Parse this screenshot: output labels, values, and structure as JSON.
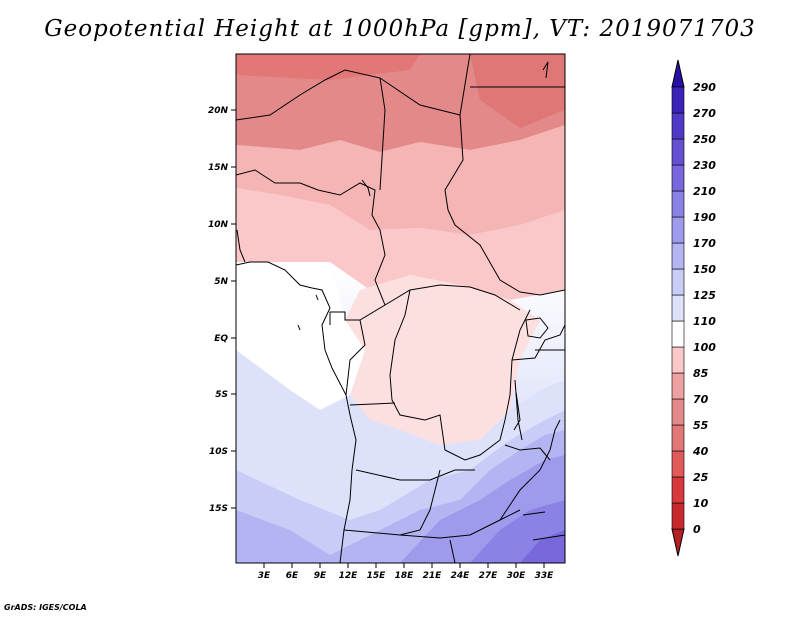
{
  "title": "Geopotential Height at 1000hPa [gpm], VT: 2019071703",
  "credit": "GrADS: IGES/COLA",
  "map": {
    "lat_labels": [
      "20N",
      "15N",
      "10N",
      "5N",
      "EQ",
      "5S",
      "10S",
      "15S"
    ],
    "lon_labels": [
      "3E",
      "6E",
      "9E",
      "12E",
      "15E",
      "18E",
      "21E",
      "24E",
      "27E",
      "30E",
      "33E"
    ]
  },
  "colorbar": {
    "labels": [
      "0",
      "10",
      "25",
      "40",
      "55",
      "70",
      "85",
      "100",
      "110",
      "125",
      "150",
      "170",
      "190",
      "210",
      "230",
      "250",
      "270",
      "290"
    ],
    "colors": [
      "#b52024",
      "#c7282d",
      "#d8393c",
      "#e05a5a",
      "#e27777",
      "#e38989",
      "#eda0a0",
      "#fac8c8",
      "#ffffff",
      "#dde2fa",
      "#c7cdf6",
      "#b3b5f2",
      "#9e9bec",
      "#8a82e4",
      "#7868db",
      "#6650d2",
      "#4f3ac8",
      "#3a24b8",
      "#2810a4"
    ]
  }
}
